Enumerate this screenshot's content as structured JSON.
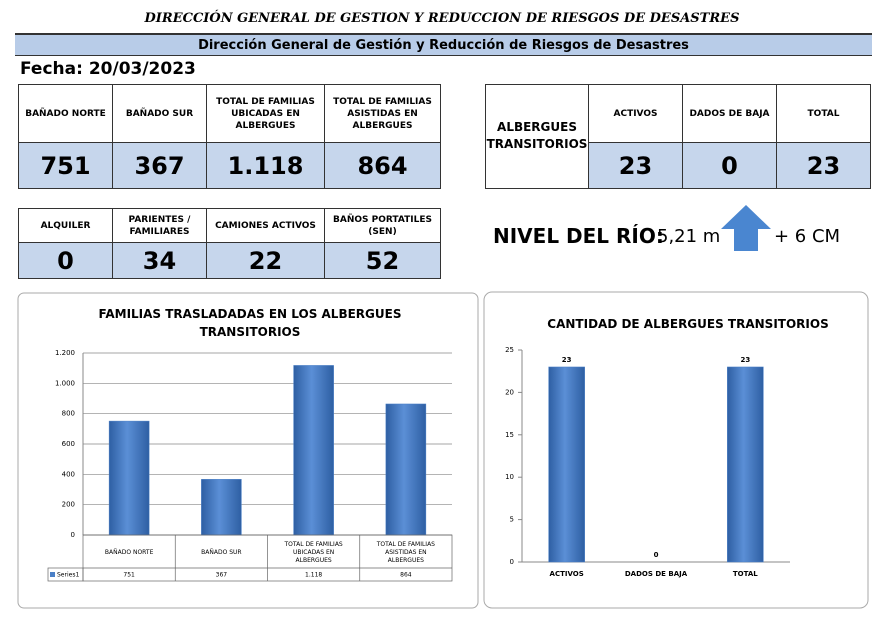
{
  "header": {
    "title": "DIRECCIÓN GENERAL DE GESTION Y REDUCCION DE RIESGOS DE DESASTRES",
    "banner": "Dirección General de Gestión y Reducción de Riesgos de Desastres",
    "date": "Fecha: 20/03/2023"
  },
  "families_table": {
    "headers": [
      "BAÑADO NORTE",
      "BAÑADO SUR",
      "TOTAL DE FAMILIAS UBICADAS EN ALBERGUES",
      "TOTAL DE FAMILIAS ASISTIDAS EN ALBERGUES"
    ],
    "values": [
      "751",
      "367",
      "1.118",
      "864"
    ]
  },
  "shelters_table": {
    "label": "ALBERGUES TRANSITORIOS",
    "headers": [
      "ACTIVOS",
      "DADOS DE BAJA",
      "TOTAL"
    ],
    "values": [
      "23",
      "0",
      "23"
    ]
  },
  "other_table": {
    "headers": [
      "ALQUILER",
      "PARIENTES / FAMILIARES",
      "CAMIONES ACTIVOS",
      "BAÑOS PORTATILES (SEN)"
    ],
    "values": [
      "0",
      "34",
      "22",
      "52"
    ]
  },
  "river": {
    "label": "NIVEL DEL RÍO:",
    "level": "5,21 m",
    "change": "+ 6 CM"
  },
  "chart_data": [
    {
      "type": "bar",
      "title": "FAMILIAS TRASLADADAS EN LOS ALBERGUES TRANSITORIOS",
      "categories": [
        "BAÑADO NORTE",
        "BAÑADO SUR",
        "TOTAL DE FAMILIAS UBICADAS EN ALBERGUES",
        "TOTAL DE FAMILIAS ASISTIDAS EN ALBERGUES"
      ],
      "series": [
        {
          "name": "Series1",
          "color": "#4a7fc6",
          "values": [
            751,
            367,
            1118,
            864
          ],
          "value_labels": [
            "751",
            "367",
            "1.118",
            "864"
          ]
        }
      ],
      "ylim": [
        0,
        1200
      ],
      "yticks": [
        0,
        200,
        400,
        600,
        800,
        {
          "value": 1000,
          "label": "1.000"
        },
        {
          "value": 1200,
          "label": "1.200"
        }
      ],
      "grid": true,
      "data_table": true
    },
    {
      "type": "bar",
      "title": "CANTIDAD DE ALBERGUES TRANSITORIOS",
      "categories": [
        "ACTIVOS",
        "DADOS DE BAJA",
        "TOTAL"
      ],
      "series": [
        {
          "color": "#4a7fc6",
          "values": [
            23,
            0,
            23
          ]
        }
      ],
      "ylim": [
        0,
        25
      ],
      "yticks": [
        0,
        5,
        10,
        15,
        20,
        25
      ],
      "grid": false,
      "data_labels": true
    }
  ]
}
